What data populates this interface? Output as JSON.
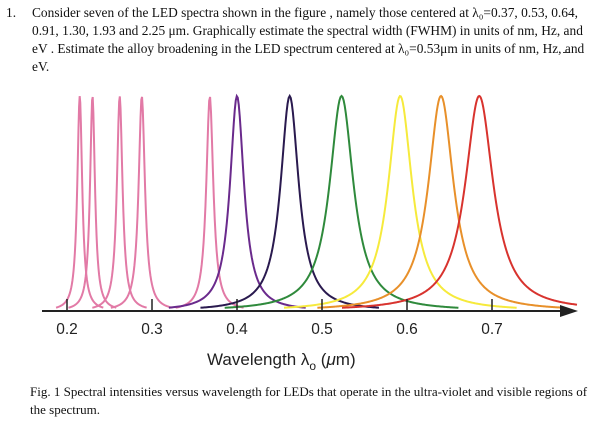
{
  "question": {
    "number": "1.",
    "text": "Consider seven of the LED spectra shown in the figure , namely those centered at λ₀=0.37, 0.53, 0.64, 0.91, 1.30, 1.93 and 2.25 μm. Graphically estimate the spectral width (FWHM) in units of nm, Hz, and eV . Estimate the alloy broadening in the LED spectrum centered at λ₀=0.53μm in units of nm, Hz, and eV."
  },
  "chart_data": {
    "type": "line",
    "title": "",
    "xlabel": "Wavelength λo (μm)",
    "ylabel": "",
    "xlim": [
      0.18,
      0.8
    ],
    "ylim": [
      0,
      1
    ],
    "grid": false,
    "x_ticks": [
      0.2,
      0.3,
      0.4,
      0.5,
      0.6,
      0.7
    ],
    "x_tick_labels": [
      "0.2",
      "0.3",
      "0.4",
      "0.5",
      "0.6",
      "0.7"
    ],
    "series": [
      {
        "center": 0.215,
        "fwhm": 0.007,
        "peak": 1.0,
        "color": "#e27aa6"
      },
      {
        "center": 0.23,
        "fwhm": 0.007,
        "peak": 1.0,
        "color": "#e27aa6"
      },
      {
        "center": 0.262,
        "fwhm": 0.008,
        "peak": 1.0,
        "color": "#e27aa6"
      },
      {
        "center": 0.288,
        "fwhm": 0.009,
        "peak": 1.0,
        "color": "#e27aa6"
      },
      {
        "center": 0.368,
        "fwhm": 0.01,
        "peak": 1.0,
        "color": "#e27aa6"
      },
      {
        "center": 0.4,
        "fwhm": 0.02,
        "peak": 1.0,
        "color": "#6a2a8c"
      },
      {
        "center": 0.462,
        "fwhm": 0.026,
        "peak": 1.0,
        "color": "#2a1a4f"
      },
      {
        "center": 0.523,
        "fwhm": 0.034,
        "peak": 1.0,
        "color": "#2f8a3c"
      },
      {
        "center": 0.592,
        "fwhm": 0.034,
        "peak": 1.0,
        "color": "#f6ea3c"
      },
      {
        "center": 0.64,
        "fwhm": 0.036,
        "peak": 1.0,
        "color": "#e8902a"
      },
      {
        "center": 0.685,
        "fwhm": 0.04,
        "peak": 1.0,
        "color": "#d8332e"
      }
    ]
  },
  "caption": "Fig. 1 Spectral intensities versus wavelength for LEDs that operate in the ultra-violet and visible regions of the spectrum."
}
